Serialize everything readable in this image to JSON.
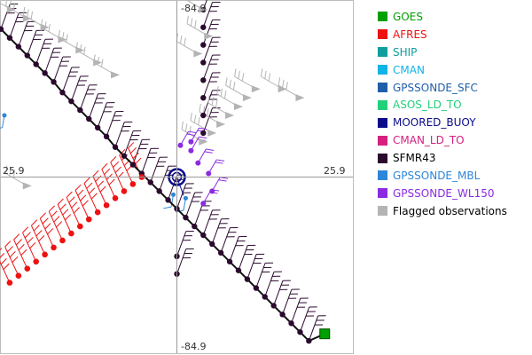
{
  "chart_data": {
    "type": "scatter",
    "title": "",
    "xlabel": "",
    "ylabel": "",
    "tick_labels": {
      "top": "-84.9",
      "bottom": "-84.9",
      "left": "25.9",
      "right": "25.9"
    },
    "xlim": [
      -1,
      1
    ],
    "ylim": [
      -1,
      1
    ],
    "legend_position": "right",
    "grid": false,
    "legend": [
      {
        "name": "GOES",
        "color": "#00a000",
        "text_color": "#00a000"
      },
      {
        "name": "AFRES",
        "color": "#ee1111",
        "text_color": "#ee1111"
      },
      {
        "name": "SHIP",
        "color": "#119e9e",
        "text_color": "#119e9e"
      },
      {
        "name": "CMAN",
        "color": "#11b4e6",
        "text_color": "#11b4e6"
      },
      {
        "name": "GPSSONDE_SFC",
        "color": "#1f5fa8",
        "text_color": "#1f5fa8"
      },
      {
        "name": "ASOS_LD_TO",
        "color": "#22d07a",
        "text_color": "#22d07a"
      },
      {
        "name": "MOORED_BUOY",
        "color": "#0a0a8a",
        "text_color": "#0a0a8a"
      },
      {
        "name": "CMAN_LD_TO",
        "color": "#d62080",
        "text_color": "#d62080"
      },
      {
        "name": "SFMR43",
        "color": "#2b0a2e",
        "text_color": "#000000"
      },
      {
        "name": "GPSSONDE_MBL",
        "color": "#2e86d8",
        "text_color": "#2e86d8"
      },
      {
        "name": "GPSSONDE_WL150",
        "color": "#8a2be2",
        "text_color": "#8a2be2"
      },
      {
        "name": "Flagged observations",
        "color": "#b4b4b4",
        "text_color": "#000000"
      }
    ],
    "series": [
      {
        "name": "SFMR43",
        "legend_index": 8,
        "points": [
          [
            -1.0,
            0.84
          ],
          [
            -0.95,
            0.79
          ],
          [
            -0.9,
            0.74
          ],
          [
            -0.85,
            0.69
          ],
          [
            -0.8,
            0.64
          ],
          [
            -0.75,
            0.59
          ],
          [
            -0.7,
            0.54
          ],
          [
            -0.65,
            0.48
          ],
          [
            -0.6,
            0.43
          ],
          [
            -0.55,
            0.38
          ],
          [
            -0.5,
            0.33
          ],
          [
            -0.45,
            0.28
          ],
          [
            -0.4,
            0.23
          ],
          [
            -0.35,
            0.17
          ],
          [
            -0.3,
            0.12
          ],
          [
            -0.25,
            0.07
          ],
          [
            -0.2,
            0.02
          ],
          [
            -0.15,
            -0.03
          ],
          [
            -0.1,
            -0.08
          ],
          [
            -0.05,
            -0.13
          ],
          [
            0.0,
            -0.18
          ],
          [
            0.05,
            -0.23
          ],
          [
            0.1,
            -0.28
          ],
          [
            0.15,
            -0.33
          ],
          [
            0.2,
            -0.38
          ],
          [
            0.25,
            -0.43
          ],
          [
            0.3,
            -0.48
          ],
          [
            0.35,
            -0.53
          ],
          [
            0.4,
            -0.58
          ],
          [
            0.45,
            -0.63
          ],
          [
            0.5,
            -0.68
          ],
          [
            0.55,
            -0.73
          ],
          [
            0.6,
            -0.78
          ],
          [
            0.65,
            -0.83
          ],
          [
            0.7,
            -0.88
          ],
          [
            0.75,
            -0.93
          ],
          [
            0.15,
            0.95
          ],
          [
            0.15,
            0.85
          ],
          [
            0.15,
            0.75
          ],
          [
            0.15,
            0.65
          ],
          [
            0.15,
            0.55
          ],
          [
            0.15,
            0.45
          ],
          [
            0.15,
            0.35
          ],
          [
            0.15,
            0.25
          ],
          [
            0.0,
            -0.45
          ],
          [
            0.0,
            -0.55
          ]
        ]
      },
      {
        "name": "AFRES",
        "legend_index": 1,
        "points": [
          [
            -0.2,
            0.0
          ],
          [
            -0.25,
            -0.04
          ],
          [
            -0.3,
            -0.08
          ],
          [
            -0.35,
            -0.12
          ],
          [
            -0.4,
            -0.16
          ],
          [
            -0.45,
            -0.2
          ],
          [
            -0.5,
            -0.24
          ],
          [
            -0.55,
            -0.28
          ],
          [
            -0.6,
            -0.32
          ],
          [
            -0.65,
            -0.36
          ],
          [
            -0.7,
            -0.4
          ],
          [
            -0.75,
            -0.44
          ],
          [
            -0.8,
            -0.48
          ],
          [
            -0.85,
            -0.52
          ],
          [
            -0.9,
            -0.56
          ],
          [
            -0.95,
            -0.6
          ]
        ]
      },
      {
        "name": "Flagged observations",
        "legend_index": 11,
        "points": [
          [
            -0.94,
            0.95
          ],
          [
            -0.85,
            0.9
          ],
          [
            -0.75,
            0.85
          ],
          [
            -0.65,
            0.78
          ],
          [
            -0.55,
            0.72
          ],
          [
            -0.45,
            0.65
          ],
          [
            -0.35,
            0.58
          ],
          [
            0.45,
            0.5
          ],
          [
            0.4,
            0.45
          ],
          [
            0.35,
            0.4
          ],
          [
            0.3,
            0.35
          ],
          [
            0.25,
            0.3
          ],
          [
            0.2,
            0.25
          ],
          [
            0.15,
            0.2
          ],
          [
            0.15,
            0.95
          ],
          [
            0.18,
            0.8
          ],
          [
            0.12,
            0.7
          ],
          [
            -0.85,
            -0.05
          ],
          [
            0.6,
            0.5
          ],
          [
            0.7,
            0.45
          ]
        ]
      },
      {
        "name": "GPSSONDE_WL150",
        "legend_index": 10,
        "points": [
          [
            0.02,
            0.18
          ],
          [
            0.08,
            0.15
          ],
          [
            0.12,
            0.08
          ],
          [
            0.18,
            0.02
          ],
          [
            0.2,
            -0.08
          ],
          [
            0.15,
            -0.15
          ],
          [
            0.08,
            0.2
          ]
        ]
      },
      {
        "name": "MOORED_BUOY",
        "legend_index": 6,
        "points": [
          [
            0.0,
            0.0
          ]
        ]
      },
      {
        "name": "GPSSONDE_MBL",
        "legend_index": 9,
        "points": [
          [
            -0.98,
            0.35
          ],
          [
            -0.02,
            -0.1
          ],
          [
            0.05,
            -0.12
          ]
        ]
      },
      {
        "name": "GOES",
        "legend_index": 0,
        "points": [
          [
            0.84,
            -0.89
          ]
        ]
      }
    ]
  }
}
